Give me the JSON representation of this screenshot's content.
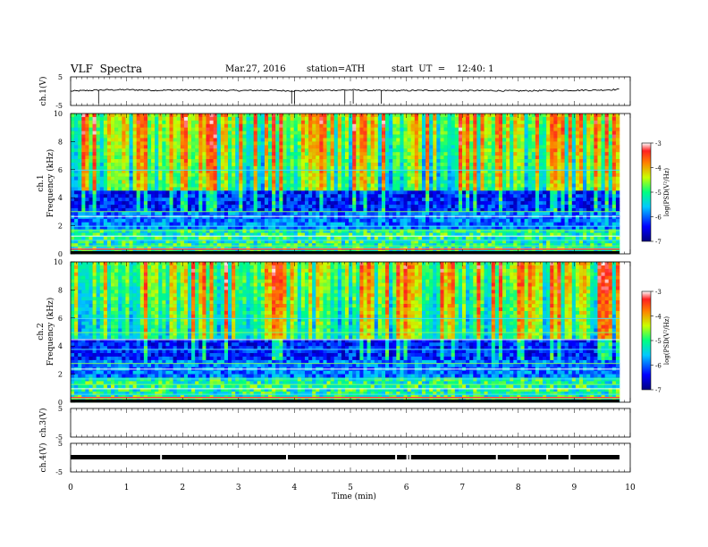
{
  "header": {
    "title": "VLF  Spectra",
    "date": "Mar.27, 2016",
    "station": "station=ATH",
    "start": "start  UT  =    12:40: 1"
  },
  "chart_data": [
    {
      "type": "line",
      "id": "ch1_waveform",
      "ylabel": "ch.1(V)",
      "ylim": [
        -5,
        5
      ],
      "yticks": [
        "5",
        "-5"
      ],
      "x": [
        0,
        0.5,
        1,
        1.5,
        2,
        2.5,
        3,
        3.5,
        4,
        4.5,
        5,
        5.5,
        6,
        6.5,
        7,
        7.5,
        8,
        8.5,
        9,
        9.5,
        9.8
      ],
      "values": [
        0,
        0.4,
        0.5,
        0.3,
        0.4,
        0.3,
        0.2,
        0.3,
        0.1,
        0.3,
        0.4,
        0.2,
        0.2,
        0.3,
        0.2,
        0.2,
        0.1,
        0.2,
        0.3,
        0.4,
        0.6
      ]
    },
    {
      "type": "heatmap",
      "id": "ch1_spectrogram",
      "ylabel": "ch.1\nFrequency  (kHz)",
      "yticks": [
        "0",
        "2",
        "4",
        "6",
        "8",
        "10"
      ],
      "ylim": [
        0,
        10
      ],
      "colorbar": {
        "label": "log(PSD(V²/Hz)",
        "ticks": [
          "-3",
          "-4",
          "-5",
          "-6",
          "-7"
        ],
        "range": [
          -7,
          -3
        ]
      }
    },
    {
      "type": "heatmap",
      "id": "ch2_spectrogram",
      "ylabel": "ch.2\nFrequency  (kHz)",
      "yticks": [
        "0",
        "2",
        "4",
        "6",
        "8",
        "10"
      ],
      "ylim": [
        0,
        10
      ],
      "colorbar": {
        "label": "log(PSD(V²/Hz)",
        "ticks": [
          "-3",
          "-4",
          "-5",
          "-6",
          "-7"
        ],
        "range": [
          -7,
          -3
        ]
      }
    },
    {
      "type": "line",
      "id": "ch3_waveform",
      "ylabel": "ch.3(V)",
      "ylim": [
        -5,
        5
      ],
      "yticks": [
        "5",
        "-5"
      ]
    },
    {
      "type": "line",
      "id": "ch4_waveform",
      "ylabel": "ch.4(V)",
      "ylim": [
        -5,
        5
      ],
      "yticks": [
        "5",
        "-5"
      ],
      "x": [
        0,
        9.8
      ],
      "values": [
        0,
        0
      ]
    }
  ],
  "xaxis": {
    "label": "Time  (min)",
    "ticks": [
      "0",
      "1",
      "2",
      "3",
      "4",
      "5",
      "6",
      "7",
      "8",
      "9",
      "10"
    ],
    "range": [
      0,
      10
    ]
  }
}
